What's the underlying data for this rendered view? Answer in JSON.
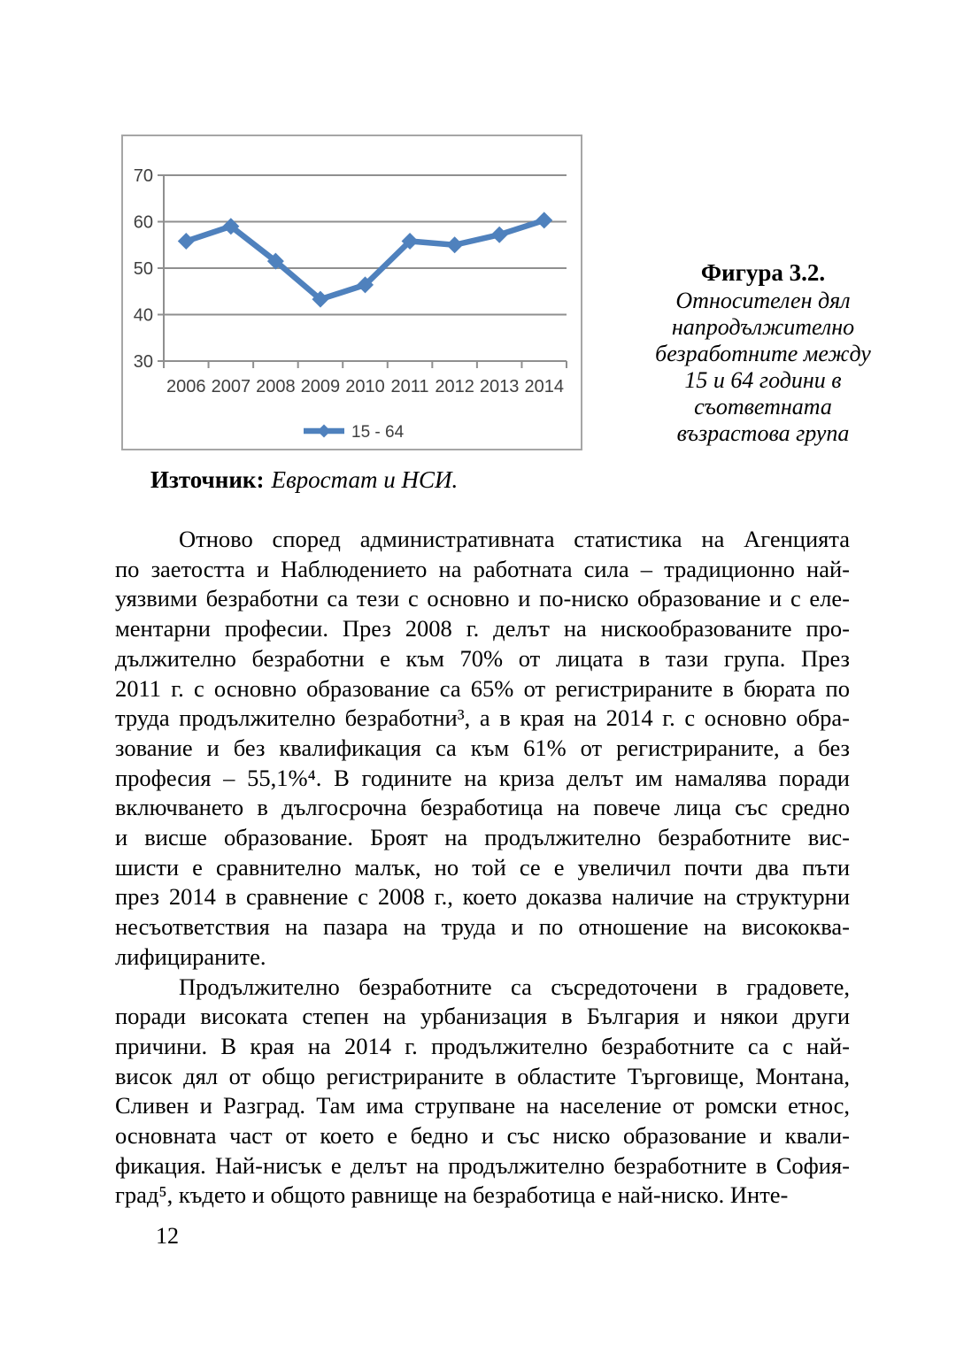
{
  "page": {
    "number": "12"
  },
  "figure": {
    "title": "Фигура 3.2.",
    "caption_lines": [
      "Относителен дял",
      "напродължително",
      "безработните между",
      "15 и 64 години в",
      "съответната",
      "възрастова  група"
    ],
    "source_label": "Източник:",
    "source_text": "Евростат и НСИ."
  },
  "chart_data": {
    "type": "line",
    "title": "",
    "xlabel": "",
    "ylabel": "",
    "categories": [
      "2006",
      "2007",
      "2008",
      "2009",
      "2010",
      "2011",
      "2012",
      "2013",
      "2014"
    ],
    "series": [
      {
        "name": "15 - 64",
        "values": [
          55.8,
          59.0,
          51.5,
          43.3,
          46.4,
          55.8,
          55.0,
          57.2,
          60.3
        ]
      }
    ],
    "ylim": [
      30,
      70
    ],
    "yticks": [
      30,
      40,
      50,
      60,
      70
    ],
    "grid": true,
    "legend_position": "bottom",
    "marker": "diamond",
    "colors": {
      "series": "#4f81bd",
      "grid": "#8f8f8f",
      "axis": "#8f8f8f",
      "tick_text": "#3f3f3f",
      "frame": "#a6a6a6"
    }
  },
  "body": {
    "paragraph1_lines": [
      "Отново според административната статистика на Агенцията",
      "по заетостта и Наблюдението на работната сила – традиционно най-",
      "уязвими безработни са тези с основно и по-ниско образование и с еле-",
      "ментарни професии. През 2008 г. делът на нискообразованите про-",
      "дължително безработни е към 70% от лицата в тази група. През",
      "2011 г. с основно образование са 65% от регистрираните в бюрата по",
      "труда продължително безработни³, а в края на 2014 г. с основно обра-",
      "зование и без квалификация са към 61% от регистрираните, а без",
      "професия – 55,1%⁴. В годините на криза делът им намалява поради",
      "включването в дългосрочна безработица на повече лица със средно",
      "и висше образование. Броят на продължително безработните вис-",
      "шисти е сравнително малък, но той се е увеличил почти два пъти",
      "през 2014 в сравнение с 2008 г., което доказва наличие на структурни",
      "несъответствия на пазара на труда и по отношение на висококва-",
      "лифицираните."
    ],
    "paragraph2_lines": [
      "Продължително безработните са съсредоточени в градовете,",
      "поради високата степен на урбанизация в България и някои други",
      "причини. В края на 2014 г. продължително безработните са с най-",
      "висок дял от общо регистрираните в областите Търговище, Монтана,",
      "Сливен и Разград. Там има струпване на население от ромски етнос,",
      "основната част от което е бедно и със ниско образование и квали-",
      "фикация. Най-нисък е делът на продължително безработните в София-",
      "град⁵, където и общото равнище на безработица е най-ниско. Инте-"
    ]
  }
}
